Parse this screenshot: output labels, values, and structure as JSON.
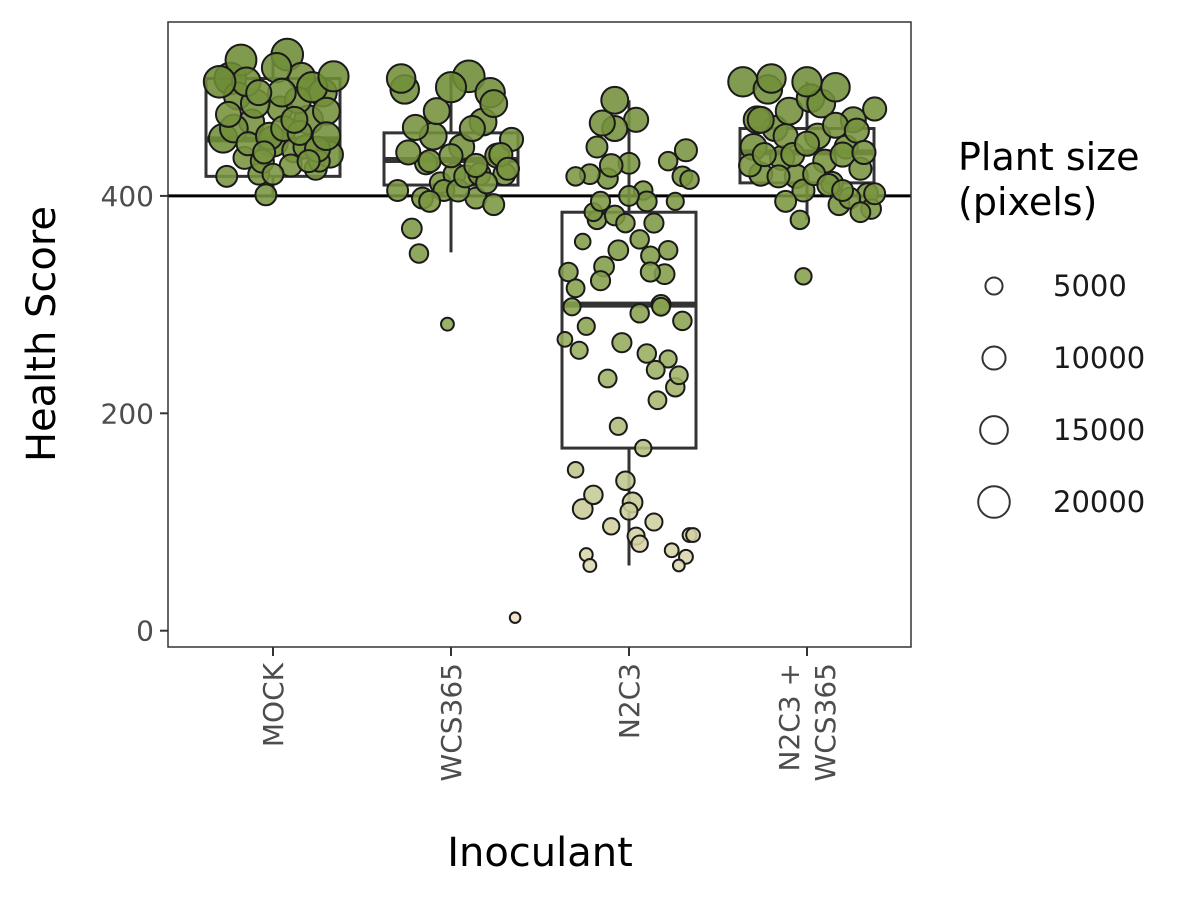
{
  "chart_data": {
    "type": "scatter",
    "subtype": "boxplot with jittered points sized by plant size",
    "xlabel": "Inoculant",
    "ylabel": "Health Score",
    "categories": [
      "MOCK",
      "WCS365",
      "N2C3",
      "N2C3 +\nWCS365"
    ],
    "ylim": [
      -15,
      560
    ],
    "yticks": [
      0,
      200,
      400
    ],
    "reference_line_y": 400,
    "grid": false,
    "legend": {
      "title": "Plant size\n(pixels)",
      "placement": "right",
      "sizes": [
        5000,
        10000,
        15000,
        20000
      ]
    },
    "boxes": [
      {
        "category": "MOCK",
        "whisker_low": 398,
        "q1": 418,
        "median": 452,
        "q3": 508,
        "whisker_high": 532
      },
      {
        "category": "WCS365",
        "whisker_low": 348,
        "q1": 410,
        "median": 433,
        "q3": 458,
        "whisker_high": 512
      },
      {
        "category": "N2C3",
        "whisker_low": 60,
        "q1": 168,
        "median": 300,
        "q3": 385,
        "whisker_high": 488
      },
      {
        "category": "N2C3 +\nWCS365",
        "whisker_low": 378,
        "q1": 412,
        "median": 440,
        "q3": 462,
        "whisker_high": 505
      }
    ],
    "points": [
      {
        "category": "MOCK",
        "points": [
          [
            -0.28,
            453,
            16000
          ],
          [
            -0.24,
            508,
            20000
          ],
          [
            -0.2,
            492,
            14000
          ],
          [
            -0.16,
            435,
            9000
          ],
          [
            -0.12,
            468,
            12000
          ],
          [
            -0.08,
            420,
            8000
          ],
          [
            -0.04,
            401,
            8000
          ],
          [
            0,
            450,
            18000
          ],
          [
            0.04,
            480,
            12000
          ],
          [
            0.08,
            530,
            20000
          ],
          [
            0.12,
            442,
            11000
          ],
          [
            0.16,
            510,
            14000
          ],
          [
            0.2,
            470,
            16000
          ],
          [
            0.24,
            425,
            9000
          ],
          [
            0.28,
            495,
            15000
          ],
          [
            0.32,
            438,
            13000
          ],
          [
            -0.26,
            418,
            8000
          ],
          [
            -0.22,
            462,
            15000
          ],
          [
            -0.18,
            525,
            19000
          ],
          [
            -0.14,
            448,
            10000
          ],
          [
            -0.1,
            485,
            16000
          ],
          [
            -0.06,
            432,
            10000
          ],
          [
            -0.02,
            455,
            14000
          ],
          [
            0.02,
            518,
            17000
          ],
          [
            0.06,
            462,
            12000
          ],
          [
            0.1,
            428,
            9000
          ],
          [
            0.14,
            488,
            13000
          ],
          [
            0.18,
            445,
            10000
          ],
          [
            0.22,
            500,
            18000
          ],
          [
            0.26,
            432,
            8000
          ],
          [
            0.3,
            478,
            14000
          ],
          [
            -0.25,
            475,
            12000
          ],
          [
            -0.15,
            505,
            16000
          ],
          [
            -0.05,
            440,
            9000
          ],
          [
            0.05,
            495,
            15000
          ],
          [
            0.15,
            458,
            11000
          ],
          [
            0.25,
            443,
            12000
          ],
          [
            0.34,
            510,
            18000
          ],
          [
            -0.3,
            505,
            20000
          ],
          [
            0,
            420,
            8000
          ],
          [
            0.12,
            470,
            13000
          ],
          [
            -0.08,
            495,
            12000
          ],
          [
            0.2,
            432,
            9000
          ],
          [
            0.3,
            455,
            15000
          ]
        ]
      },
      {
        "category": "WCS365",
        "points": [
          [
            -0.3,
            405,
            8000
          ],
          [
            -0.26,
            498,
            16000
          ],
          [
            -0.22,
            370,
            7000
          ],
          [
            -0.18,
            347,
            6000
          ],
          [
            -0.14,
            430,
            9000
          ],
          [
            -0.1,
            455,
            14000
          ],
          [
            -0.06,
            412,
            8000
          ],
          [
            -0.02,
            282,
            2500
          ],
          [
            0.02,
            420,
            9000
          ],
          [
            0.06,
            445,
            12000
          ],
          [
            0.1,
            510,
            20000
          ],
          [
            0.14,
            398,
            8000
          ],
          [
            0.18,
            468,
            14000
          ],
          [
            0.22,
            495,
            17000
          ],
          [
            0.26,
            437,
            11000
          ],
          [
            0.3,
            420,
            9000
          ],
          [
            0.34,
            452,
            10000
          ],
          [
            0.36,
            12,
            1500
          ],
          [
            -0.28,
            508,
            16000
          ],
          [
            -0.2,
            463,
            12000
          ],
          [
            -0.16,
            398,
            8000
          ],
          [
            -0.12,
            432,
            9000
          ],
          [
            -0.08,
            478,
            13000
          ],
          [
            -0.04,
            405,
            8000
          ],
          [
            0,
            437,
            10000
          ],
          [
            0.04,
            405,
            9000
          ],
          [
            0.08,
            418,
            9000
          ],
          [
            0.12,
            462,
            12000
          ],
          [
            0.16,
            420,
            9000
          ],
          [
            0.2,
            412,
            8000
          ],
          [
            0.24,
            485,
            14000
          ],
          [
            0.28,
            438,
            10000
          ],
          [
            0.32,
            425,
            9000
          ],
          [
            -0.24,
            440,
            11000
          ],
          [
            -0.12,
            395,
            8000
          ],
          [
            0,
            500,
            18000
          ],
          [
            0.14,
            428,
            10000
          ],
          [
            0.24,
            392,
            8000
          ]
        ]
      },
      {
        "category": "N2C3",
        "points": [
          [
            -0.36,
            268,
            3500
          ],
          [
            -0.32,
            298,
            5000
          ],
          [
            -0.3,
            148,
            4000
          ],
          [
            -0.26,
            112,
            7000
          ],
          [
            -0.24,
            70,
            2500
          ],
          [
            -0.22,
            60,
            2500
          ],
          [
            -0.2,
            125,
            6000
          ],
          [
            -0.18,
            378,
            6000
          ],
          [
            -0.14,
            335,
            7000
          ],
          [
            -0.1,
            96,
            4500
          ],
          [
            -0.06,
            188,
            5000
          ],
          [
            -0.02,
            138,
            6000
          ],
          [
            0.02,
            118,
            7000
          ],
          [
            0.04,
            87,
            5000
          ],
          [
            0.06,
            80,
            4500
          ],
          [
            0.08,
            168,
            4500
          ],
          [
            0.1,
            255,
            6000
          ],
          [
            0.12,
            345,
            6000
          ],
          [
            0.14,
            100,
            5000
          ],
          [
            0.16,
            212,
            5500
          ],
          [
            0.18,
            300,
            6500
          ],
          [
            0.2,
            328,
            7000
          ],
          [
            0.22,
            250,
            5000
          ],
          [
            0.24,
            74,
            3000
          ],
          [
            0.26,
            224,
            6000
          ],
          [
            0.28,
            235,
            5500
          ],
          [
            0.3,
            285,
            6000
          ],
          [
            0.32,
            68,
            3000
          ],
          [
            0.34,
            88,
            3000
          ],
          [
            -0.34,
            330,
            6000
          ],
          [
            -0.3,
            315,
            5500
          ],
          [
            -0.28,
            258,
            5000
          ],
          [
            -0.26,
            358,
            4000
          ],
          [
            -0.24,
            280,
            5000
          ],
          [
            -0.2,
            385,
            5500
          ],
          [
            -0.16,
            322,
            6500
          ],
          [
            -0.12,
            416,
            7500
          ],
          [
            -0.08,
            382,
            7000
          ],
          [
            -0.04,
            265,
            6500
          ],
          [
            0,
            430,
            8000
          ],
          [
            0.04,
            470,
            11000
          ],
          [
            0.06,
            360,
            6000
          ],
          [
            0.08,
            405,
            6000
          ],
          [
            0.1,
            395,
            7000
          ],
          [
            0.14,
            375,
            6500
          ],
          [
            0.18,
            298,
            5500
          ],
          [
            0.22,
            432,
            6000
          ],
          [
            0.26,
            395,
            5000
          ],
          [
            0.3,
            418,
            7000
          ],
          [
            0.32,
            442,
            9000
          ],
          [
            0.34,
            415,
            6000
          ],
          [
            -0.22,
            420,
            7000
          ],
          [
            -0.18,
            445,
            8000
          ],
          [
            -0.1,
            428,
            9500
          ],
          [
            0,
            400,
            7000
          ],
          [
            0.12,
            330,
            6500
          ],
          [
            -0.02,
            375,
            6000
          ],
          [
            0.06,
            292,
            6000
          ],
          [
            -0.06,
            350,
            7000
          ],
          [
            -0.12,
            232,
            5500
          ],
          [
            -0.08,
            462,
            12000
          ],
          [
            -0.15,
            467,
            12000
          ],
          [
            -0.08,
            488,
            14000
          ],
          [
            0.15,
            240,
            5500
          ],
          [
            0.22,
            350,
            6000
          ],
          [
            -0.16,
            395,
            6500
          ],
          [
            0,
            110,
            5000
          ],
          [
            0.28,
            60,
            2000
          ],
          [
            0.36,
            88,
            3000
          ],
          [
            -0.3,
            418,
            6000
          ]
        ]
      },
      {
        "category": "N2C3 +\nWCS365",
        "points": [
          [
            -0.36,
            505,
            17000
          ],
          [
            -0.3,
            445,
            13000
          ],
          [
            -0.26,
            420,
            10000
          ],
          [
            -0.22,
            498,
            16000
          ],
          [
            -0.18,
            462,
            12000
          ],
          [
            -0.14,
            435,
            11000
          ],
          [
            -0.1,
            478,
            14000
          ],
          [
            -0.06,
            418,
            10000
          ],
          [
            -0.02,
            405,
            9000
          ],
          [
            0.02,
            490,
            15000
          ],
          [
            0.06,
            455,
            12000
          ],
          [
            0.1,
            432,
            10000
          ],
          [
            0.14,
            412,
            9000
          ],
          [
            0.18,
            392,
            8000
          ],
          [
            0.22,
            445,
            10000
          ],
          [
            0.26,
            470,
            12000
          ],
          [
            0.3,
            425,
            9000
          ],
          [
            0.34,
            402,
            8000
          ],
          [
            0.38,
            480,
            10000
          ],
          [
            -0.04,
            378,
            6000
          ],
          [
            -0.02,
            326,
            4500
          ],
          [
            -0.32,
            428,
            9000
          ],
          [
            -0.28,
            470,
            14000
          ],
          [
            -0.24,
            438,
            10000
          ],
          [
            -0.2,
            508,
            16000
          ],
          [
            -0.16,
            418,
            9000
          ],
          [
            -0.12,
            455,
            11000
          ],
          [
            -0.08,
            438,
            10000
          ],
          [
            0,
            448,
            11000
          ],
          [
            0.04,
            420,
            9000
          ],
          [
            0.08,
            485,
            15000
          ],
          [
            0.12,
            410,
            9000
          ],
          [
            0.16,
            465,
            12000
          ],
          [
            0.2,
            438,
            11000
          ],
          [
            0.24,
            398,
            8000
          ],
          [
            0.28,
            460,
            11000
          ],
          [
            0.32,
            440,
            10000
          ],
          [
            0.36,
            388,
            7000
          ],
          [
            0.38,
            402,
            8000
          ],
          [
            0.3,
            385,
            7000
          ],
          [
            -0.26,
            470,
            13000
          ],
          [
            0,
            505,
            17000
          ],
          [
            0.16,
            500,
            16000
          ],
          [
            -0.12,
            395,
            8000
          ],
          [
            0.2,
            405,
            8000
          ]
        ]
      }
    ],
    "fill_gradient": [
      "#f2e4c8",
      "#8fa854",
      "#5f7f28"
    ]
  }
}
